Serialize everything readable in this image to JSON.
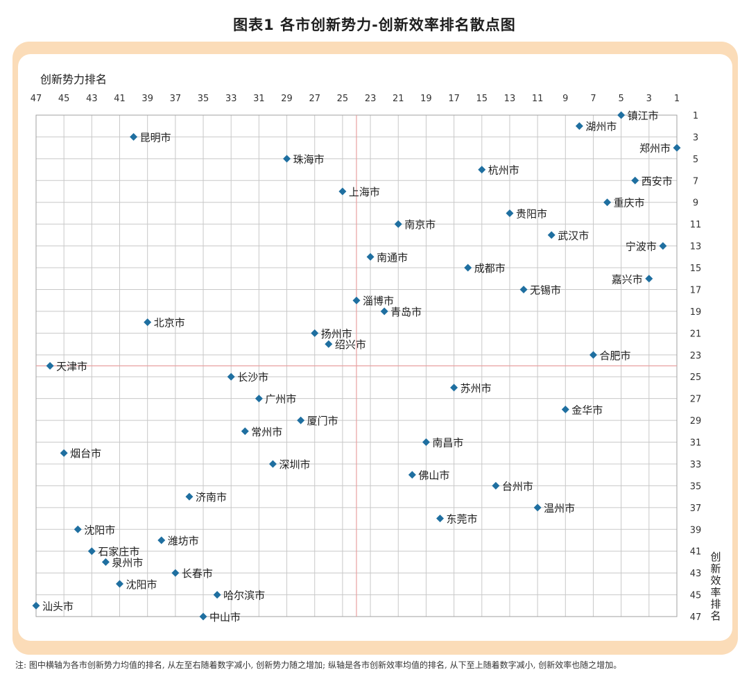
{
  "title": "图表1  各市创新势力-创新效率排名散点图",
  "note": "注: 图中横轴为各市创新势力均值的排名, 从左至右随着数字减小, 创新势力随之增加; 纵轴是各市创新效率均值的排名, 从下至上随着数字减小, 创新效率也随之增加。",
  "colors": {
    "marker": "#1f6fa0",
    "grid": "#c8c8c8",
    "reference": "#e8a0a0",
    "frame": "#fbdcb8"
  },
  "chart_data": {
    "type": "scatter",
    "xlabel": "创新势力排名",
    "ylabel": "创新效率排名",
    "xlim": [
      47,
      1
    ],
    "ylim": [
      1,
      47
    ],
    "x_axis_position": "top",
    "y_axis_position": "right",
    "grid": true,
    "x_ticks": [
      47,
      45,
      43,
      41,
      39,
      37,
      35,
      33,
      31,
      29,
      27,
      25,
      23,
      21,
      19,
      17,
      15,
      13,
      11,
      9,
      7,
      5,
      3,
      1
    ],
    "y_ticks": [
      1,
      3,
      5,
      7,
      9,
      11,
      13,
      15,
      17,
      19,
      21,
      23,
      25,
      27,
      29,
      31,
      33,
      35,
      37,
      39,
      41,
      43,
      45,
      47
    ],
    "reference_lines": {
      "x": 24,
      "y": 24
    },
    "points": [
      {
        "label": "镇江市",
        "x": 5,
        "y": 1,
        "label_pos": "right"
      },
      {
        "label": "湖州市",
        "x": 8,
        "y": 2,
        "label_pos": "right"
      },
      {
        "label": "郑州市",
        "x": 1,
        "y": 4,
        "label_pos": "left"
      },
      {
        "label": "昆明市",
        "x": 40,
        "y": 3,
        "label_pos": "right"
      },
      {
        "label": "珠海市",
        "x": 29,
        "y": 5,
        "label_pos": "right"
      },
      {
        "label": "杭州市",
        "x": 15,
        "y": 6,
        "label_pos": "right"
      },
      {
        "label": "西安市",
        "x": 4,
        "y": 7,
        "label_pos": "right"
      },
      {
        "label": "上海市",
        "x": 25,
        "y": 8,
        "label_pos": "right"
      },
      {
        "label": "重庆市",
        "x": 6,
        "y": 9,
        "label_pos": "right"
      },
      {
        "label": "贵阳市",
        "x": 13,
        "y": 10,
        "label_pos": "right"
      },
      {
        "label": "南京市",
        "x": 21,
        "y": 11,
        "label_pos": "right"
      },
      {
        "label": "武汉市",
        "x": 10,
        "y": 12,
        "label_pos": "right"
      },
      {
        "label": "宁波市",
        "x": 2,
        "y": 13,
        "label_pos": "left"
      },
      {
        "label": "南通市",
        "x": 23,
        "y": 14,
        "label_pos": "right"
      },
      {
        "label": "成都市",
        "x": 16,
        "y": 15,
        "label_pos": "right"
      },
      {
        "label": "嘉兴市",
        "x": 3,
        "y": 16,
        "label_pos": "left"
      },
      {
        "label": "无锡市",
        "x": 12,
        "y": 17,
        "label_pos": "right"
      },
      {
        "label": "淄博市",
        "x": 24,
        "y": 18,
        "label_pos": "right"
      },
      {
        "label": "青岛市",
        "x": 22,
        "y": 19,
        "label_pos": "right"
      },
      {
        "label": "北京市",
        "x": 39,
        "y": 20,
        "label_pos": "right"
      },
      {
        "label": "扬州市",
        "x": 27,
        "y": 21,
        "label_pos": "right"
      },
      {
        "label": "绍兴市",
        "x": 26,
        "y": 22,
        "label_pos": "right"
      },
      {
        "label": "合肥市",
        "x": 7,
        "y": 23,
        "label_pos": "right"
      },
      {
        "label": "天津市",
        "x": 46,
        "y": 24,
        "label_pos": "right"
      },
      {
        "label": "长沙市",
        "x": 33,
        "y": 25,
        "label_pos": "right"
      },
      {
        "label": "苏州市",
        "x": 17,
        "y": 26,
        "label_pos": "right"
      },
      {
        "label": "广州市",
        "x": 31,
        "y": 27,
        "label_pos": "right"
      },
      {
        "label": "金华市",
        "x": 9,
        "y": 28,
        "label_pos": "right"
      },
      {
        "label": "厦门市",
        "x": 28,
        "y": 29,
        "label_pos": "right"
      },
      {
        "label": "常州市",
        "x": 32,
        "y": 30,
        "label_pos": "right"
      },
      {
        "label": "南昌市",
        "x": 19,
        "y": 31,
        "label_pos": "right"
      },
      {
        "label": "烟台市",
        "x": 45,
        "y": 32,
        "label_pos": "right"
      },
      {
        "label": "深圳市",
        "x": 30,
        "y": 33,
        "label_pos": "right"
      },
      {
        "label": "佛山市",
        "x": 20,
        "y": 34,
        "label_pos": "right"
      },
      {
        "label": "台州市",
        "x": 14,
        "y": 35,
        "label_pos": "right"
      },
      {
        "label": "济南市",
        "x": 36,
        "y": 36,
        "label_pos": "right"
      },
      {
        "label": "温州市",
        "x": 11,
        "y": 37,
        "label_pos": "right"
      },
      {
        "label": "东莞市",
        "x": 18,
        "y": 38,
        "label_pos": "right"
      },
      {
        "label": "沈阳市",
        "x": 44,
        "y": 39,
        "label_pos": "right"
      },
      {
        "label": "潍坊市",
        "x": 38,
        "y": 40,
        "label_pos": "right"
      },
      {
        "label": "石家庄市",
        "x": 43,
        "y": 41,
        "label_pos": "right"
      },
      {
        "label": "泉州市",
        "x": 42,
        "y": 42,
        "label_pos": "right"
      },
      {
        "label": "长春市",
        "x": 37,
        "y": 43,
        "label_pos": "right"
      },
      {
        "label": "沈阳市",
        "x": 41,
        "y": 44,
        "label_pos": "right"
      },
      {
        "label": "哈尔滨市",
        "x": 34,
        "y": 45,
        "label_pos": "right"
      },
      {
        "label": "汕头市",
        "x": 47,
        "y": 46,
        "label_pos": "right"
      },
      {
        "label": "中山市",
        "x": 35,
        "y": 47,
        "label_pos": "right"
      }
    ]
  }
}
